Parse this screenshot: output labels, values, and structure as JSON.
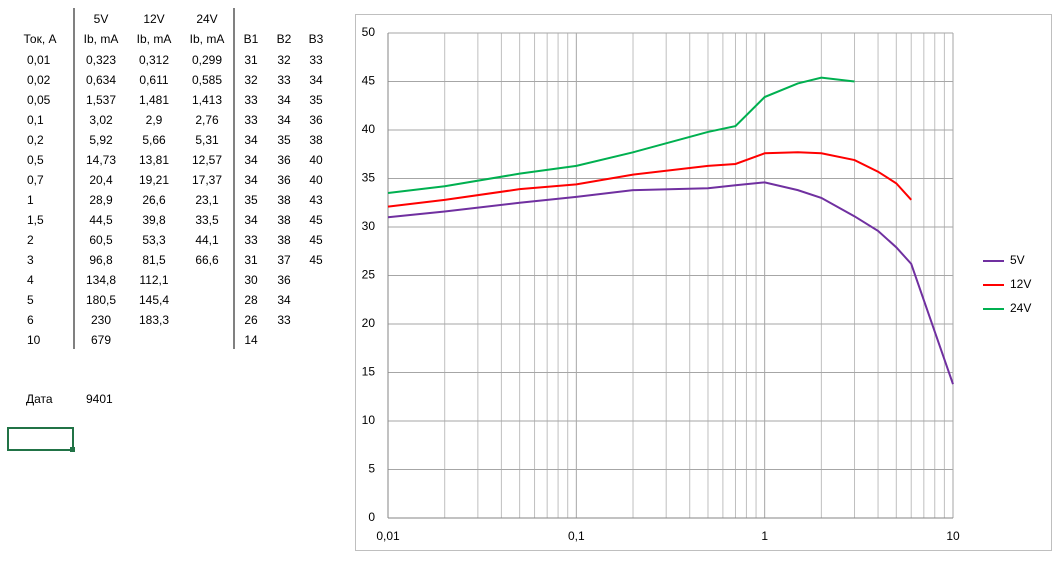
{
  "table": {
    "header_top": [
      "5V",
      "12V",
      "24V"
    ],
    "header": [
      "Ток, А",
      "Ib, mA",
      "Ib, mA",
      "Ib, mA",
      "B1",
      "B2",
      "B3"
    ],
    "rows": [
      [
        "0,01",
        "0,323",
        "0,312",
        "0,299",
        "31",
        "32",
        "33"
      ],
      [
        "0,02",
        "0,634",
        "0,611",
        "0,585",
        "32",
        "33",
        "34"
      ],
      [
        "0,05",
        "1,537",
        "1,481",
        "1,413",
        "33",
        "34",
        "35"
      ],
      [
        "0,1",
        "3,02",
        "2,9",
        "2,76",
        "33",
        "34",
        "36"
      ],
      [
        "0,2",
        "5,92",
        "5,66",
        "5,31",
        "34",
        "35",
        "38"
      ],
      [
        "0,5",
        "14,73",
        "13,81",
        "12,57",
        "34",
        "36",
        "40"
      ],
      [
        "0,7",
        "20,4",
        "19,21",
        "17,37",
        "34",
        "36",
        "40"
      ],
      [
        "1",
        "28,9",
        "26,6",
        "23,1",
        "35",
        "38",
        "43"
      ],
      [
        "1,5",
        "44,5",
        "39,8",
        "33,5",
        "34",
        "38",
        "45"
      ],
      [
        "2",
        "60,5",
        "53,3",
        "44,1",
        "33",
        "38",
        "45"
      ],
      [
        "3",
        "96,8",
        "81,5",
        "66,6",
        "31",
        "37",
        "45"
      ],
      [
        "4",
        "134,8",
        "112,1",
        null,
        "30",
        "36",
        null
      ],
      [
        "5",
        "180,5",
        "145,4",
        null,
        "28",
        "34",
        null
      ],
      [
        "6",
        "230",
        "183,3",
        null,
        "26",
        "33",
        null
      ],
      [
        "10",
        "679",
        null,
        null,
        "14",
        null,
        null
      ]
    ],
    "date_label": "Дата",
    "date_value": "9401"
  },
  "chart_data": {
    "type": "line",
    "x": [
      0.01,
      0.02,
      0.05,
      0.1,
      0.2,
      0.5,
      0.7,
      1,
      1.5,
      2,
      3,
      4,
      5,
      6,
      10
    ],
    "series": [
      {
        "name": "5V",
        "color": "#7030a0",
        "values": [
          31.0,
          31.6,
          32.5,
          33.1,
          33.8,
          34.0,
          34.3,
          34.6,
          33.8,
          33.0,
          31.1,
          29.6,
          27.9,
          26.2,
          13.8
        ]
      },
      {
        "name": "12V",
        "color": "#ff0000",
        "values": [
          32.1,
          32.8,
          33.9,
          34.4,
          35.4,
          36.3,
          36.5,
          37.6,
          37.7,
          37.6,
          36.9,
          35.7,
          34.5,
          32.8,
          null
        ]
      },
      {
        "name": "24V",
        "color": "#00b050",
        "values": [
          33.5,
          34.2,
          35.5,
          36.3,
          37.7,
          39.8,
          40.4,
          43.4,
          44.8,
          45.4,
          45.0,
          null,
          null,
          null,
          null
        ]
      }
    ],
    "xscale": "log",
    "xlim": [
      0.01,
      10
    ],
    "xticks": [
      {
        "value": 0.01,
        "label": "0,01"
      },
      {
        "value": 0.1,
        "label": "0,1"
      },
      1,
      10
    ],
    "ylim": [
      0,
      50
    ],
    "yticks": [
      0,
      5,
      10,
      15,
      20,
      25,
      30,
      35,
      40,
      45,
      50
    ],
    "grid": true,
    "legend": "right"
  }
}
